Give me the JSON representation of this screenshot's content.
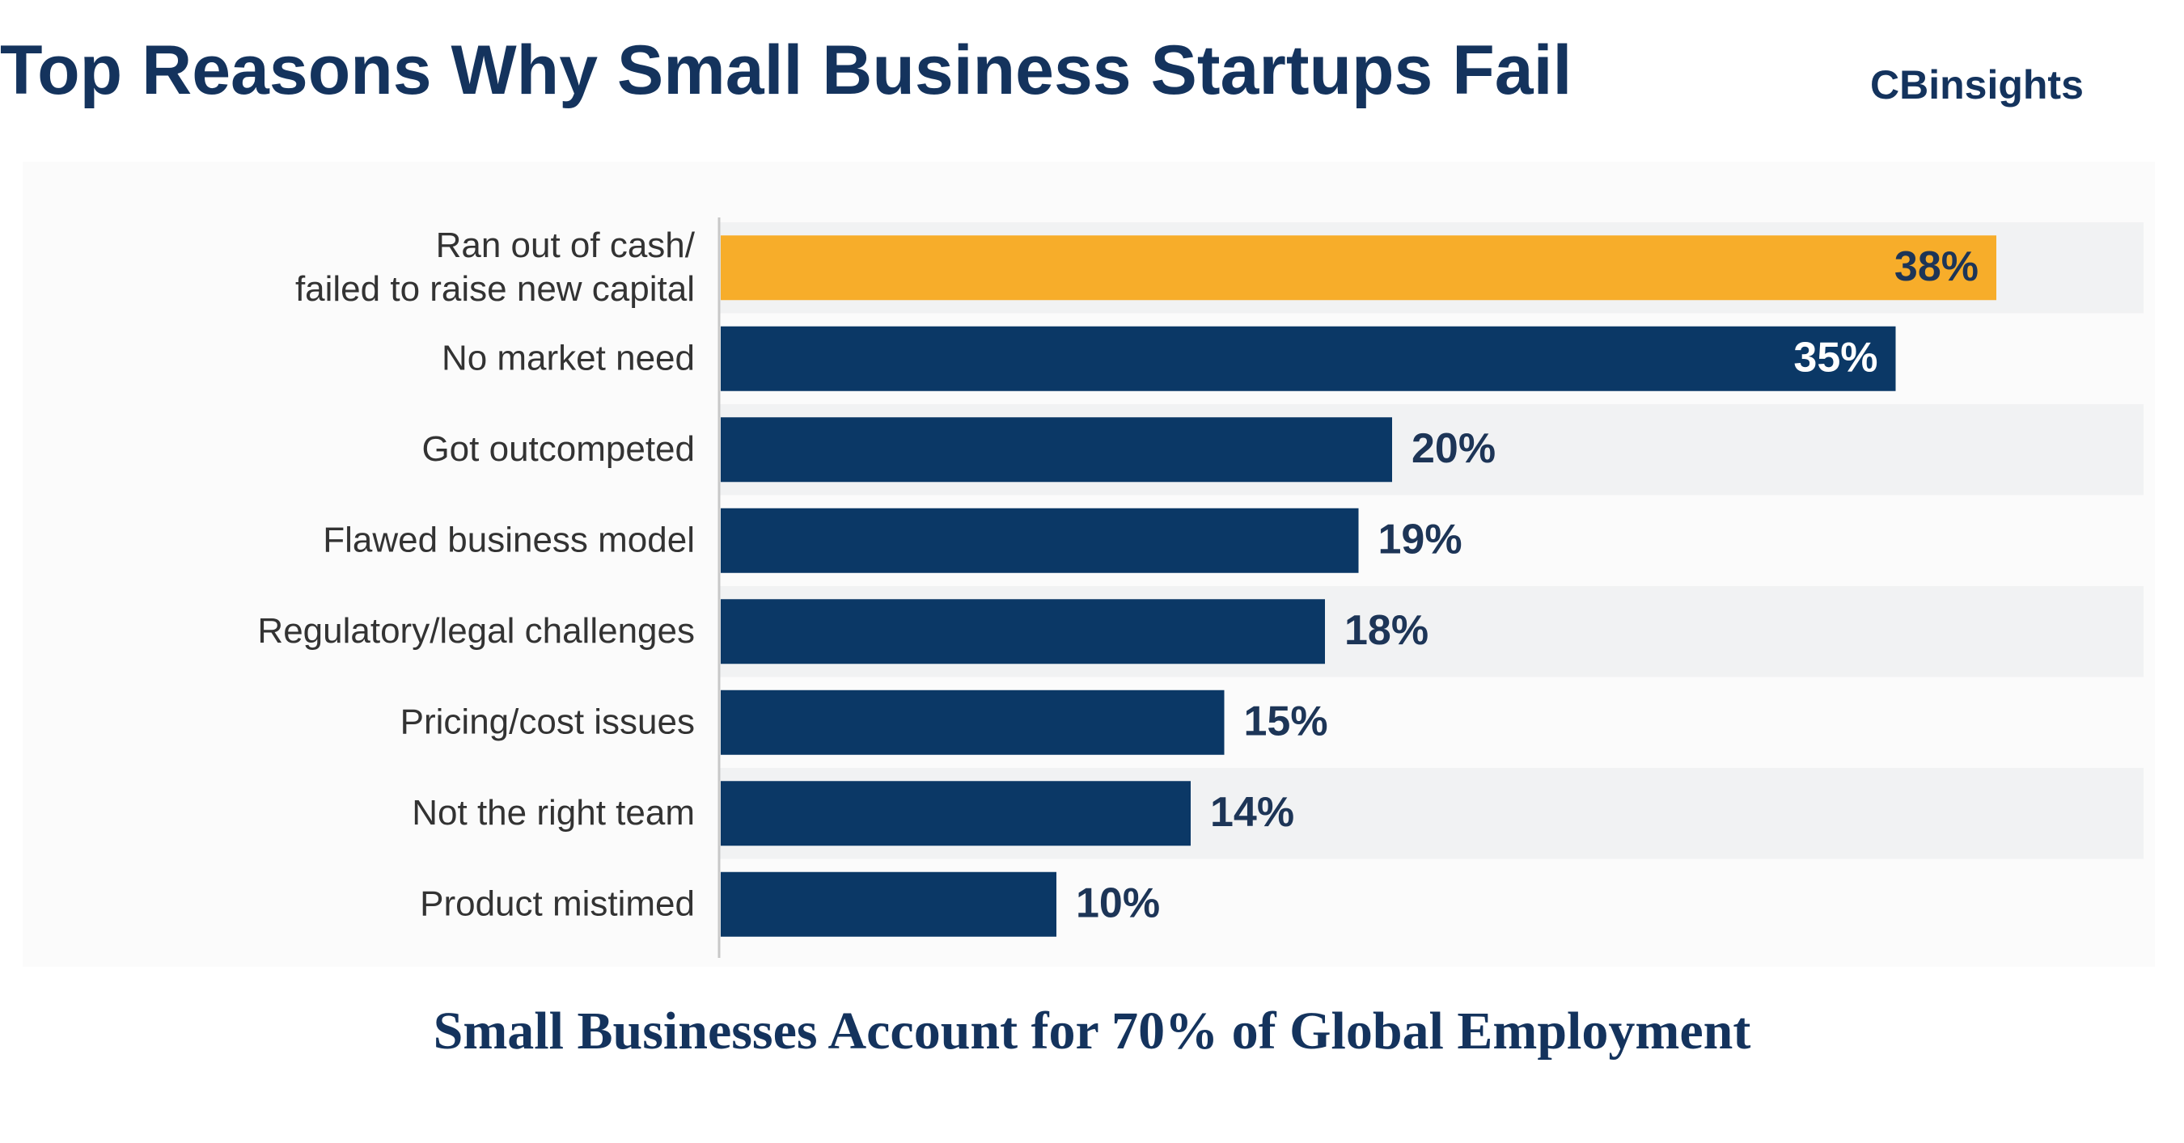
{
  "header": {
    "title": "Top Reasons Why Small Business Startups Fail",
    "brand": "CBinsights"
  },
  "footer": {
    "caption": "Small Businesses Account for 70% of Global Employment"
  },
  "colors": {
    "highlight": "#f7ad2a",
    "bar": "#0b3866",
    "label_text": "#333333",
    "value_text_dark": "#1d3557",
    "band": "#f1f2f3"
  },
  "chart_data": {
    "type": "bar",
    "orientation": "horizontal",
    "title": "Top Reasons Why Small Business Startups Fail",
    "categories": [
      [
        "Ran out of cash/",
        "failed to raise new capital"
      ],
      [
        "No market need"
      ],
      [
        "Got outcompeted"
      ],
      [
        "Flawed business model"
      ],
      [
        "Regulatory/legal challenges"
      ],
      [
        "Pricing/cost issues"
      ],
      [
        "Not the right team"
      ],
      [
        "Product mistimed"
      ]
    ],
    "values": [
      38,
      35,
      20,
      19,
      18,
      15,
      14,
      10
    ],
    "value_labels": [
      "38%",
      "35%",
      "20%",
      "19%",
      "18%",
      "15%",
      "14%",
      "10%"
    ],
    "unit": "%",
    "xlim": [
      0,
      40
    ],
    "highlight_index": 0,
    "xlabel": "",
    "ylabel": "",
    "grid": false
  }
}
